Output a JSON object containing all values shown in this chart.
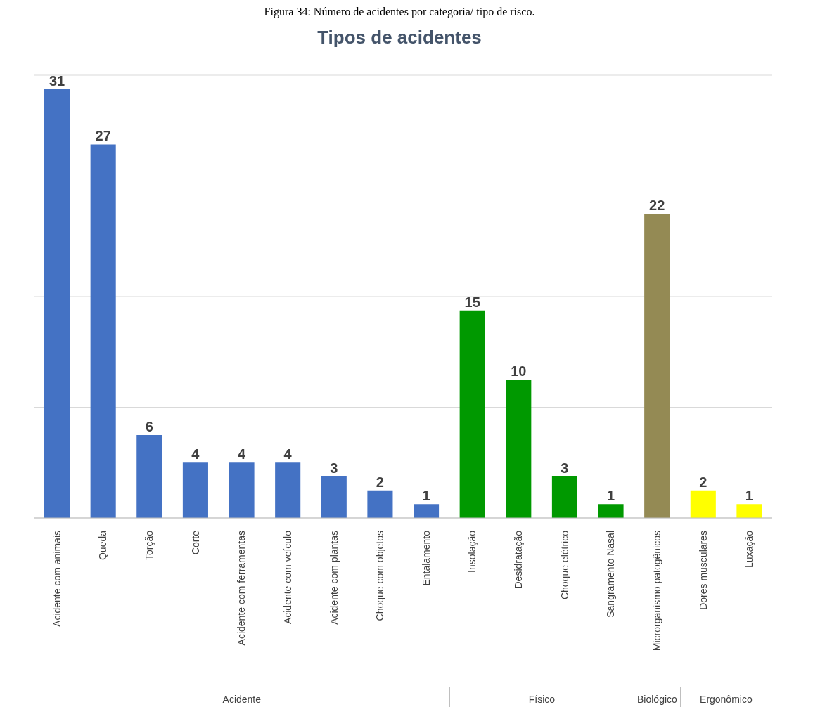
{
  "chart_data": {
    "type": "bar",
    "title": "Tipos de acidentes",
    "categories": [
      "Acidente com animais",
      "Queda",
      "Torção",
      "Corte",
      "Acidente com ferramentas",
      "Acidente com veículo",
      "Acidente com plantas",
      "Choque com objetos",
      "Entalamento",
      "Insolação",
      "Desidratação",
      "Choque elétrico",
      "Sangramento Nasal",
      "Microrganismo patogênicos",
      "Dores musculares",
      "Luxação"
    ],
    "values": [
      31,
      27,
      6,
      4,
      4,
      4,
      3,
      2,
      1,
      15,
      10,
      3,
      1,
      22,
      2,
      1
    ],
    "colors": [
      "#4472c4",
      "#4472c4",
      "#4472c4",
      "#4472c4",
      "#4472c4",
      "#4472c4",
      "#4472c4",
      "#4472c4",
      "#4472c4",
      "#009900",
      "#009900",
      "#009900",
      "#009900",
      "#948a54",
      "#ffff00",
      "#ffff00"
    ],
    "tick_labels": "x",
    "grid": "y",
    "data_labels": true,
    "legend": false,
    "annotations": [
      "Figura 34: Número de acidentes por categoria/ tipo de risco.",
      "Acidente",
      "Físico",
      "Biológico",
      "Ergonômico"
    ]
  }
}
